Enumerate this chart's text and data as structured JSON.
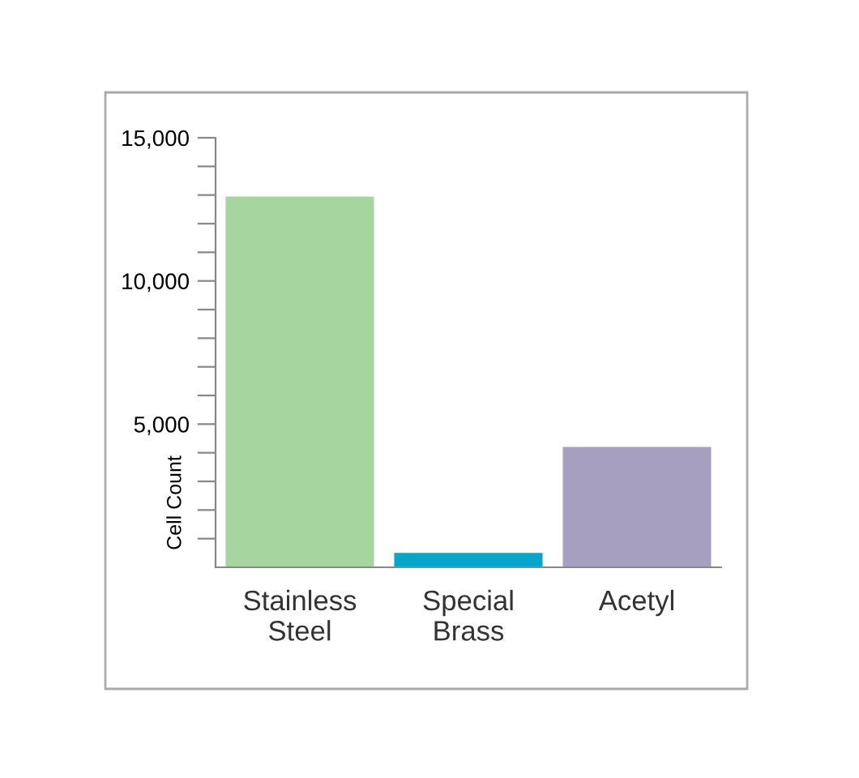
{
  "chart_data": {
    "type": "bar",
    "ylabel": "Cell Count",
    "categories": [
      "Stainless\nSteel",
      "Special\nBrass",
      "Acetyl"
    ],
    "values": [
      12950,
      500,
      4200
    ],
    "colors": [
      "#a6d5a0",
      "#06a6cb",
      "#a69fc0"
    ],
    "ylim": [
      0,
      15000
    ],
    "yticks": [
      {
        "value": 1000,
        "label": null
      },
      {
        "value": 2000,
        "label": null
      },
      {
        "value": 3000,
        "label": null
      },
      {
        "value": 4000,
        "label": null
      },
      {
        "value": 5000,
        "label": "5,000"
      },
      {
        "value": 6000,
        "label": null
      },
      {
        "value": 7000,
        "label": null
      },
      {
        "value": 8000,
        "label": null
      },
      {
        "value": 9000,
        "label": null
      },
      {
        "value": 10000,
        "label": "10,000"
      },
      {
        "value": 11000,
        "label": null
      },
      {
        "value": 12000,
        "label": null
      },
      {
        "value": 13000,
        "label": null
      },
      {
        "value": 14000,
        "label": null
      },
      {
        "value": 15000,
        "label": "15,000"
      }
    ],
    "grid": false
  }
}
